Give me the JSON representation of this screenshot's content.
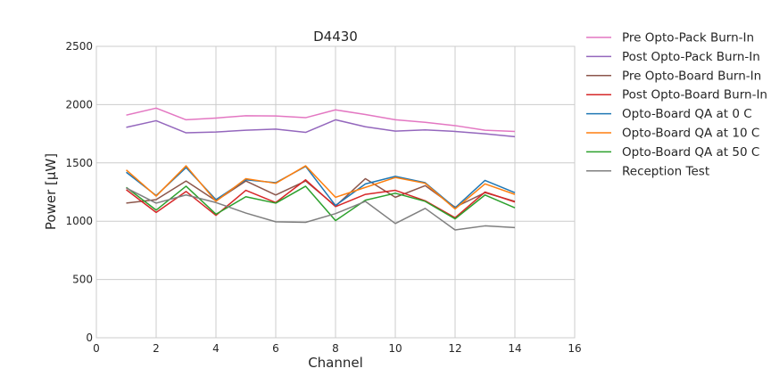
{
  "chart_data": {
    "type": "line",
    "title": "D4430",
    "xlabel": "Channel",
    "ylabel": "Power [μW]",
    "xlim": [
      0,
      16
    ],
    "ylim": [
      0,
      2500
    ],
    "xticks": [
      0,
      2,
      4,
      6,
      8,
      10,
      12,
      14,
      16
    ],
    "yticks": [
      0,
      500,
      1000,
      1500,
      2000,
      2500
    ],
    "grid": true,
    "legend_position": "outside-right",
    "x": [
      1,
      2,
      3,
      4,
      5,
      6,
      7,
      8,
      9,
      10,
      11,
      12,
      13,
      14
    ],
    "series": [
      {
        "name": "Pre Opto-Pack Burn-In",
        "color": "#e377c2",
        "values": [
          1910,
          1970,
          1870,
          1885,
          1905,
          1903,
          1888,
          1955,
          1915,
          1870,
          1848,
          1820,
          1780,
          1770
        ]
      },
      {
        "name": "Post Opto-Pack Burn-In",
        "color": "#9467bd",
        "values": [
          1805,
          1862,
          1758,
          1765,
          1780,
          1790,
          1762,
          1870,
          1810,
          1773,
          1783,
          1770,
          1750,
          1725
        ]
      },
      {
        "name": "Pre Opto-Board Burn-In",
        "color": "#8c564b",
        "values": [
          1155,
          1185,
          1345,
          1175,
          1345,
          1225,
          1345,
          1130,
          1365,
          1205,
          1305,
          1120,
          1245,
          1170
        ]
      },
      {
        "name": "Post Opto-Board Burn-In",
        "color": "#d62728",
        "values": [
          1270,
          1075,
          1255,
          1050,
          1265,
          1160,
          1355,
          1125,
          1230,
          1265,
          1175,
          1030,
          1250,
          1165
        ]
      },
      {
        "name": "Opto-Board QA at 0 C",
        "color": "#1f77b4",
        "values": [
          1420,
          1220,
          1460,
          1185,
          1355,
          1330,
          1470,
          1135,
          1320,
          1385,
          1330,
          1115,
          1350,
          1245
        ]
      },
      {
        "name": "Opto-Board QA at 10 C",
        "color": "#ff7f0e",
        "values": [
          1440,
          1215,
          1475,
          1170,
          1365,
          1325,
          1475,
          1205,
          1290,
          1375,
          1325,
          1105,
          1320,
          1230
        ]
      },
      {
        "name": "Opto-Board QA at 50 C",
        "color": "#2ca02c",
        "values": [
          1290,
          1095,
          1300,
          1060,
          1210,
          1155,
          1300,
          1005,
          1180,
          1240,
          1170,
          1020,
          1225,
          1115
        ]
      },
      {
        "name": "Reception Test",
        "color": "#7f7f7f",
        "values": [
          1285,
          1155,
          1225,
          1160,
          1070,
          995,
          990,
          1065,
          1170,
          980,
          1110,
          925,
          960,
          945
        ]
      }
    ]
  }
}
